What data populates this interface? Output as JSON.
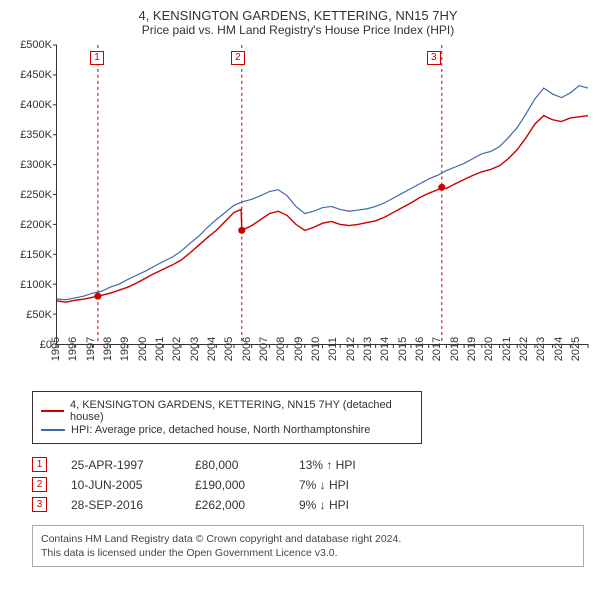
{
  "title": {
    "line1": "4, KENSINGTON GARDENS, KETTERING, NN15 7HY",
    "line2": "Price paid vs. HM Land Registry's House Price Index (HPI)"
  },
  "chart": {
    "type": "line",
    "background_color": "#ffffff",
    "grid_color": "transparent",
    "axis_color": "#333333",
    "xlim": [
      1995,
      2025
    ],
    "ylim": [
      0,
      500000
    ],
    "y_ticks": [
      0,
      50000,
      100000,
      150000,
      200000,
      250000,
      300000,
      350000,
      400000,
      450000,
      500000
    ],
    "y_tick_labels": [
      "£0",
      "£50K",
      "£100K",
      "£150K",
      "£200K",
      "£250K",
      "£300K",
      "£350K",
      "£400K",
      "£450K",
      "£500K"
    ],
    "x_ticks": [
      1995,
      1996,
      1997,
      1998,
      1999,
      2000,
      2001,
      2002,
      2003,
      2004,
      2005,
      2006,
      2007,
      2008,
      2009,
      2010,
      2011,
      2012,
      2013,
      2014,
      2015,
      2016,
      2017,
      2018,
      2019,
      2020,
      2021,
      2022,
      2023,
      2024,
      2025
    ],
    "label_fontsize": 11,
    "title_fontsize": 13,
    "series": [
      {
        "name": "property",
        "label": "4, KENSINGTON GARDENS, KETTERING, NN15 7HY (detached house)",
        "color": "#cc0000",
        "line_width": 1.4,
        "data": [
          [
            1995,
            72000
          ],
          [
            1995.5,
            70000
          ],
          [
            1996,
            73000
          ],
          [
            1996.5,
            75000
          ],
          [
            1997,
            78000
          ],
          [
            1997.31,
            80000
          ],
          [
            1998,
            85000
          ],
          [
            1998.5,
            90000
          ],
          [
            1999,
            95000
          ],
          [
            1999.5,
            102000
          ],
          [
            2000,
            110000
          ],
          [
            2000.5,
            118000
          ],
          [
            2001,
            125000
          ],
          [
            2001.5,
            132000
          ],
          [
            2002,
            140000
          ],
          [
            2002.5,
            152000
          ],
          [
            2003,
            165000
          ],
          [
            2003.5,
            178000
          ],
          [
            2004,
            190000
          ],
          [
            2004.5,
            205000
          ],
          [
            2005,
            220000
          ],
          [
            2005.4,
            225000
          ],
          [
            2005.44,
            190000
          ],
          [
            2006,
            198000
          ],
          [
            2006.5,
            208000
          ],
          [
            2007,
            218000
          ],
          [
            2007.5,
            222000
          ],
          [
            2008,
            215000
          ],
          [
            2008.5,
            200000
          ],
          [
            2009,
            190000
          ],
          [
            2009.5,
            195000
          ],
          [
            2010,
            202000
          ],
          [
            2010.5,
            205000
          ],
          [
            2011,
            200000
          ],
          [
            2011.5,
            198000
          ],
          [
            2012,
            200000
          ],
          [
            2012.5,
            203000
          ],
          [
            2013,
            206000
          ],
          [
            2013.5,
            212000
          ],
          [
            2014,
            220000
          ],
          [
            2014.5,
            228000
          ],
          [
            2015,
            236000
          ],
          [
            2015.5,
            245000
          ],
          [
            2016,
            252000
          ],
          [
            2016.5,
            258000
          ],
          [
            2016.74,
            262000
          ],
          [
            2017,
            260000
          ],
          [
            2017.5,
            268000
          ],
          [
            2018,
            275000
          ],
          [
            2018.5,
            282000
          ],
          [
            2019,
            288000
          ],
          [
            2019.5,
            292000
          ],
          [
            2020,
            298000
          ],
          [
            2020.5,
            310000
          ],
          [
            2021,
            325000
          ],
          [
            2021.5,
            345000
          ],
          [
            2022,
            368000
          ],
          [
            2022.5,
            382000
          ],
          [
            2023,
            375000
          ],
          [
            2023.5,
            372000
          ],
          [
            2024,
            378000
          ],
          [
            2024.5,
            380000
          ],
          [
            2025,
            382000
          ]
        ]
      },
      {
        "name": "hpi",
        "label": "HPI: Average price, detached house, North Northamptonshire",
        "color": "#4169aa",
        "line_width": 1.2,
        "data": [
          [
            1995,
            75000
          ],
          [
            1995.5,
            74000
          ],
          [
            1996,
            77000
          ],
          [
            1996.5,
            80000
          ],
          [
            1997,
            85000
          ],
          [
            1997.5,
            88000
          ],
          [
            1998,
            95000
          ],
          [
            1998.5,
            100000
          ],
          [
            1999,
            108000
          ],
          [
            1999.5,
            115000
          ],
          [
            2000,
            122000
          ],
          [
            2000.5,
            130000
          ],
          [
            2001,
            138000
          ],
          [
            2001.5,
            145000
          ],
          [
            2002,
            155000
          ],
          [
            2002.5,
            168000
          ],
          [
            2003,
            180000
          ],
          [
            2003.5,
            195000
          ],
          [
            2004,
            208000
          ],
          [
            2004.5,
            220000
          ],
          [
            2005,
            232000
          ],
          [
            2005.5,
            238000
          ],
          [
            2006,
            242000
          ],
          [
            2006.5,
            248000
          ],
          [
            2007,
            255000
          ],
          [
            2007.5,
            258000
          ],
          [
            2008,
            248000
          ],
          [
            2008.5,
            230000
          ],
          [
            2009,
            218000
          ],
          [
            2009.5,
            222000
          ],
          [
            2010,
            228000
          ],
          [
            2010.5,
            230000
          ],
          [
            2011,
            225000
          ],
          [
            2011.5,
            222000
          ],
          [
            2012,
            224000
          ],
          [
            2012.5,
            226000
          ],
          [
            2013,
            230000
          ],
          [
            2013.5,
            236000
          ],
          [
            2014,
            244000
          ],
          [
            2014.5,
            252000
          ],
          [
            2015,
            260000
          ],
          [
            2015.5,
            268000
          ],
          [
            2016,
            276000
          ],
          [
            2016.5,
            282000
          ],
          [
            2017,
            290000
          ],
          [
            2017.5,
            296000
          ],
          [
            2018,
            302000
          ],
          [
            2018.5,
            310000
          ],
          [
            2019,
            318000
          ],
          [
            2019.5,
            322000
          ],
          [
            2020,
            330000
          ],
          [
            2020.5,
            345000
          ],
          [
            2021,
            362000
          ],
          [
            2021.5,
            385000
          ],
          [
            2022,
            410000
          ],
          [
            2022.5,
            428000
          ],
          [
            2023,
            418000
          ],
          [
            2023.5,
            412000
          ],
          [
            2024,
            420000
          ],
          [
            2024.5,
            432000
          ],
          [
            2025,
            428000
          ]
        ]
      }
    ],
    "sale_markers": [
      {
        "num": "1",
        "x": 1997.31,
        "y": 80000,
        "color": "#cc0000"
      },
      {
        "num": "2",
        "x": 2005.44,
        "y": 190000,
        "color": "#cc0000"
      },
      {
        "num": "3",
        "x": 2016.74,
        "y": 262000,
        "color": "#cc0000"
      }
    ],
    "marker_guide_color": "#cc0000",
    "marker_guide_dash": "3,3"
  },
  "legend": {
    "border_color": "#333333",
    "items": [
      {
        "color": "#cc0000",
        "label": "4, KENSINGTON GARDENS, KETTERING, NN15 7HY (detached house)"
      },
      {
        "color": "#4169aa",
        "label": "HPI: Average price, detached house, North Northamptonshire"
      }
    ]
  },
  "sales": [
    {
      "num": "1",
      "color": "#cc0000",
      "date": "25-APR-1997",
      "price": "£80,000",
      "delta": "13% ↑ HPI"
    },
    {
      "num": "2",
      "color": "#cc0000",
      "date": "10-JUN-2005",
      "price": "£190,000",
      "delta": "7% ↓ HPI"
    },
    {
      "num": "3",
      "color": "#cc0000",
      "date": "28-SEP-2016",
      "price": "£262,000",
      "delta": "9% ↓ HPI"
    }
  ],
  "footer": {
    "line1": "Contains HM Land Registry data © Crown copyright and database right 2024.",
    "line2": "This data is licensed under the Open Government Licence v3.0."
  }
}
